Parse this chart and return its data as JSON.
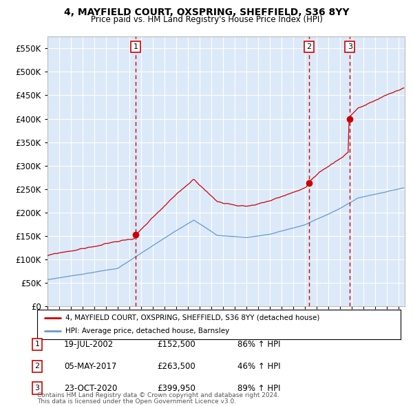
{
  "title": "4, MAYFIELD COURT, OXSPRING, SHEFFIELD, S36 8YY",
  "subtitle": "Price paid vs. HM Land Registry's House Price Index (HPI)",
  "legend_line1": "4, MAYFIELD COURT, OXSPRING, SHEFFIELD, S36 8YY (detached house)",
  "legend_line2": "HPI: Average price, detached house, Barnsley",
  "table": [
    {
      "num": "1",
      "date": "19-JUL-2002",
      "price": "£152,500",
      "change": "86% ↑ HPI"
    },
    {
      "num": "2",
      "date": "05-MAY-2017",
      "price": "£263,500",
      "change": "46% ↑ HPI"
    },
    {
      "num": "3",
      "date": "23-OCT-2020",
      "price": "£399,950",
      "change": "89% ↑ HPI"
    }
  ],
  "footer1": "Contains HM Land Registry data © Crown copyright and database right 2024.",
  "footer2": "This data is licensed under the Open Government Licence v3.0.",
  "bg_color": "#dce9f8",
  "red_line_color": "#cc0000",
  "blue_line_color": "#6699cc",
  "dashed_line_color": "#cc0000",
  "marker_color": "#cc0000",
  "grid_color": "#ffffff",
  "ylim": [
    0,
    575000
  ],
  "yticks": [
    0,
    50000,
    100000,
    150000,
    200000,
    250000,
    300000,
    350000,
    400000,
    450000,
    500000,
    550000
  ],
  "sale1_x": 2002.54,
  "sale1_y": 152500,
  "sale2_x": 2017.34,
  "sale2_y": 263500,
  "sale3_x": 2020.81,
  "sale3_y": 399950,
  "xmin": 1995.0,
  "xmax": 2025.5
}
